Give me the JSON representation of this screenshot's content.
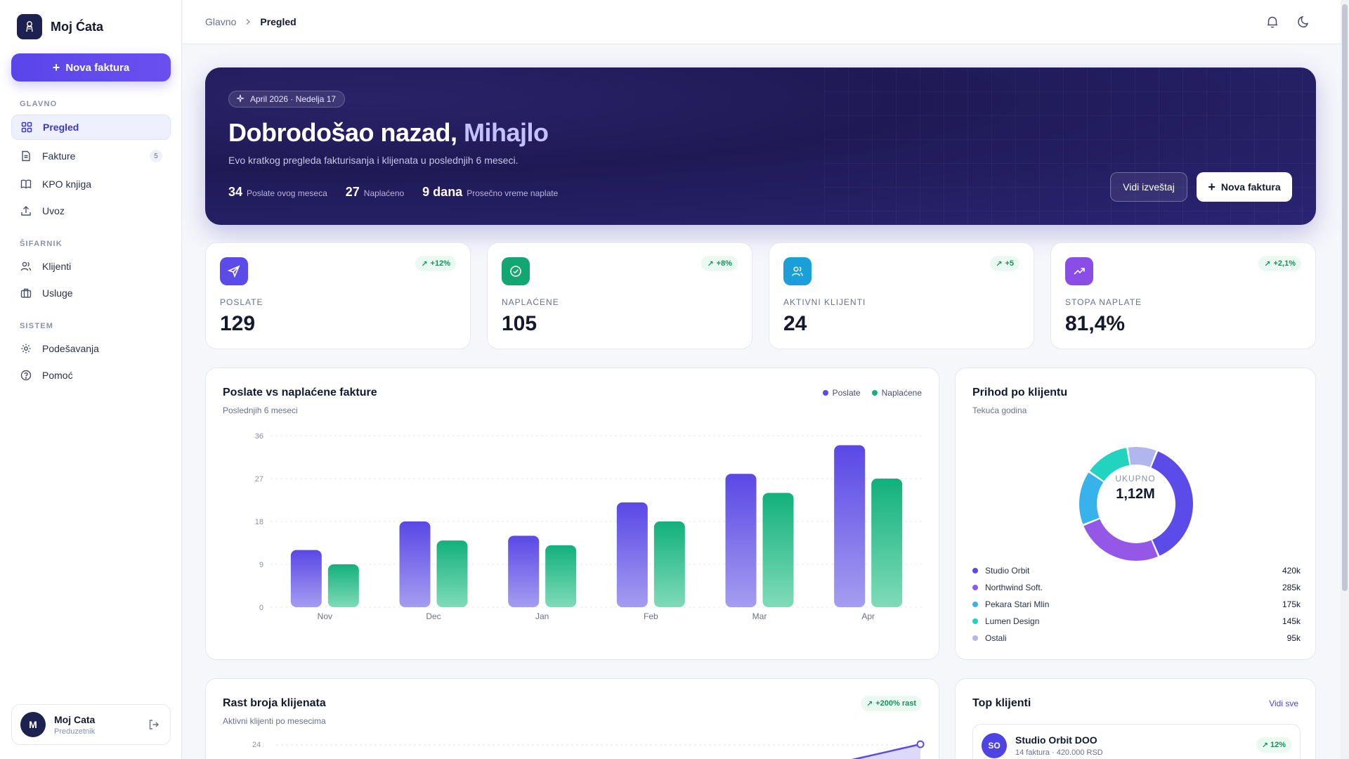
{
  "app": {
    "name": "Moj Ćata"
  },
  "sidebar": {
    "new_invoice_label": "Nova faktura",
    "sections": {
      "main": "GLAVNO",
      "catalog": "ŠIFARNIK",
      "system": "SISTEM"
    },
    "items": {
      "overview": "Pregled",
      "invoices": "Fakture",
      "invoices_badge": "5",
      "kpo": "KPO knjiga",
      "import": "Uvoz",
      "clients": "Klijenti",
      "services": "Usluge",
      "settings": "Podešavanja",
      "help": "Pomoć"
    },
    "user": {
      "initial": "M",
      "name": "Moj Cata",
      "role": "Preduzetnik"
    }
  },
  "breadcrumb": {
    "root": "Glavno",
    "current": "Pregled"
  },
  "hero": {
    "pill": "April 2026 · Nedelja 17",
    "title_prefix": "Dobrodošao nazad, ",
    "title_name": "Mihajlo",
    "subtitle": "Evo kratkog pregleda fakturisanja i klijenata u poslednjih 6 meseci.",
    "stats": [
      {
        "value": "34",
        "label": "Poslate ovog meseca"
      },
      {
        "value": "27",
        "label": "Naplaćeno"
      },
      {
        "value": "9 dana",
        "label": "Prosečno vreme naplate"
      }
    ],
    "report_button": "Vidi izveštaj",
    "new_invoice_button": "Nova faktura"
  },
  "kpis": [
    {
      "label": "POSLATE",
      "value": "129",
      "delta": "+12%",
      "color": "#5b4be8"
    },
    {
      "label": "NAPLAĆENE",
      "value": "105",
      "delta": "+8%",
      "color": "#12a672"
    },
    {
      "label": "AKTIVNI KLIJENTI",
      "value": "24",
      "delta": "+5",
      "color": "#1a9fd8"
    },
    {
      "label": "STOPA NAPLATE",
      "value": "81,4%",
      "delta": "+2,1%",
      "color": "#8a4de6"
    }
  ],
  "bar_card": {
    "title": "Poslate vs naplaćene fakture",
    "subtitle": "Poslednjih 6 meseci"
  },
  "donut_card": {
    "title": "Prihod po klijentu",
    "subtitle": "Tekuća godina",
    "center_label": "UKUPNO",
    "center_value": "1,12M",
    "values_display": [
      "420k",
      "285k",
      "175k",
      "145k",
      "95k"
    ]
  },
  "growth_card": {
    "title": "Rast broja klijenata",
    "subtitle": "Aktivni klijenti po mesecima",
    "badge": "+200% rast",
    "y_tick": "24"
  },
  "top_clients": {
    "title": "Top klijenti",
    "see_all": "Vidi sve",
    "first": {
      "initials": "SO",
      "name": "Studio Orbit DOO",
      "meta": "14 faktura · 420.000 RSD",
      "delta": "12%"
    }
  },
  "colors": {
    "accent": "#5a45ea",
    "sent": "#5b4be8",
    "paid": "#12b07c"
  },
  "chart_data": [
    {
      "type": "bar",
      "title": "Poslate vs naplaćene fakture",
      "subtitle": "Poslednjih 6 meseci",
      "categories": [
        "Nov",
        "Dec",
        "Jan",
        "Feb",
        "Mar",
        "Apr"
      ],
      "series": [
        {
          "name": "Poslate",
          "color": "#5b4be8",
          "values": [
            12,
            18,
            15,
            22,
            28,
            34
          ]
        },
        {
          "name": "Naplaćene",
          "color": "#12b07c",
          "values": [
            9,
            14,
            13,
            18,
            24,
            27
          ]
        }
      ],
      "yticks": [
        0,
        9,
        18,
        27,
        36
      ],
      "ylim": [
        0,
        36
      ],
      "grid": true,
      "legend": "top-right"
    },
    {
      "type": "pie",
      "title": "Prihod po klijentu",
      "subtitle": "Tekuća godina",
      "labels": [
        "Studio Orbit",
        "Northwind Soft.",
        "Pekara Stari Mlin",
        "Lumen Design",
        "Ostali"
      ],
      "values": [
        420,
        285,
        175,
        145,
        95
      ],
      "colors": [
        "#5b4be8",
        "#9558e6",
        "#38b2ea",
        "#22d3c0",
        "#b1b6ef"
      ],
      "legend": "bottom"
    }
  ]
}
